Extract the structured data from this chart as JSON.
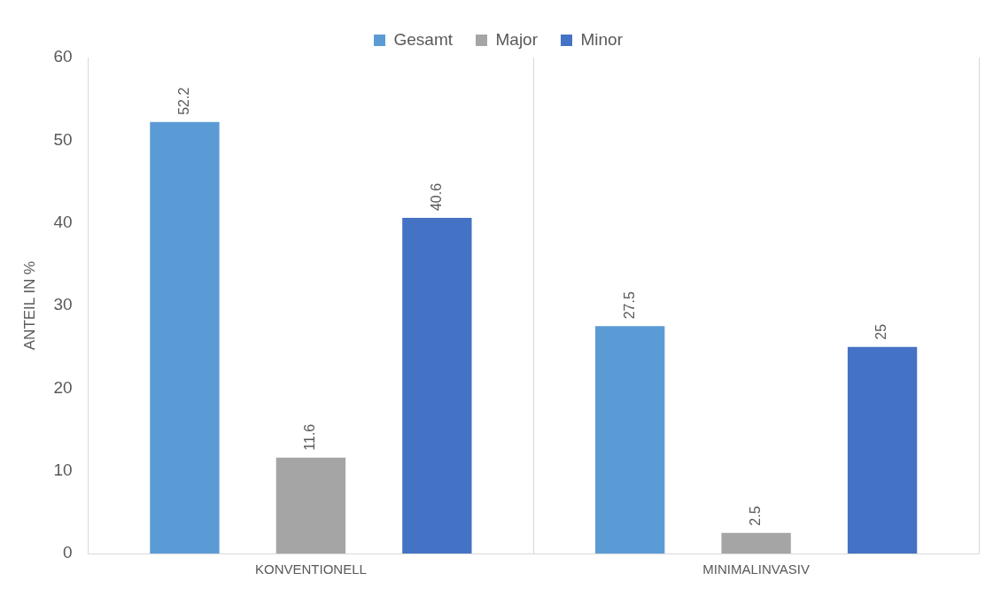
{
  "chart_data": {
    "type": "bar",
    "ylabel": "ANTEIL IN %",
    "categories": [
      "KONVENTIONELL",
      "MINIMALINVASIV"
    ],
    "series": [
      {
        "name": "Gesamt",
        "color": "#5b9bd5",
        "values": [
          52.2,
          27.5
        ]
      },
      {
        "name": "Major",
        "color": "#a5a5a5",
        "values": [
          11.6,
          2.5
        ]
      },
      {
        "name": "Minor",
        "color": "#4472c4",
        "values": [
          40.6,
          25
        ]
      }
    ],
    "ylim": [
      0,
      60
    ],
    "yticks": [
      0,
      10,
      20,
      30,
      40,
      50,
      60
    ],
    "grid": "x",
    "legend": "top",
    "data_labels": true
  }
}
